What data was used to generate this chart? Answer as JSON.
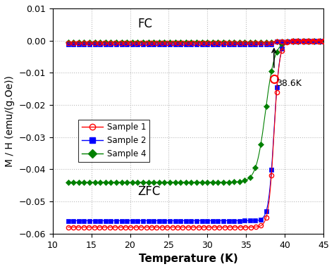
{
  "xlabel": "Temperature (K)",
  "ylabel": "M / H (emu/(g.Oe))",
  "xlim": [
    10,
    45
  ],
  "ylim": [
    -0.06,
    0.01
  ],
  "yticks": [
    0.01,
    0,
    -0.01,
    -0.02,
    -0.03,
    -0.04,
    -0.05,
    -0.06
  ],
  "xticks": [
    10,
    15,
    20,
    25,
    30,
    35,
    40,
    45
  ],
  "fc_label": "FC",
  "zfc_label": "ZFC",
  "annotation_text": "38.6K",
  "Tc": 38.6,
  "sample1_color": "#ff0000",
  "sample2_color": "#0000ff",
  "sample4_color": "#008000",
  "legend_labels": [
    "Sample 1",
    "Sample 2",
    "Sample 4"
  ],
  "bg_color": "white",
  "grid_color": "#bbbbbb"
}
